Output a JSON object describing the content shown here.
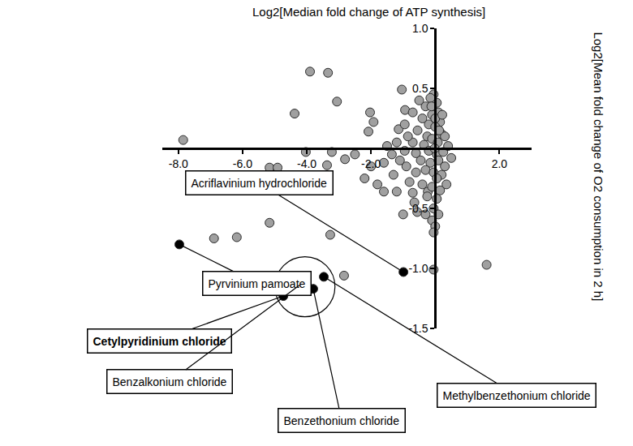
{
  "chart_data": {
    "type": "scatter",
    "x_title": "Log2[Median fold change of ATP synthesis]",
    "y_title": "Log2[Mean fold change of O2 consumption in 2 h]",
    "xlim": [
      -8.5,
      3.0
    ],
    "ylim": [
      -1.5,
      1.0
    ],
    "xticks": [
      {
        "value": -8,
        "label": "-8.0"
      },
      {
        "value": -6,
        "label": "-6.0"
      },
      {
        "value": -4,
        "label": "-4.0"
      },
      {
        "value": -2,
        "label": "-2.0"
      },
      {
        "value": 2,
        "label": "2.0"
      }
    ],
    "yticks": [
      {
        "value": 1,
        "label": "1.0"
      },
      0.5,
      -0.5,
      {
        "value": -1,
        "label": "-1.0"
      },
      {
        "value": -1.5,
        "label": "-1.5"
      }
    ],
    "grid": false,
    "series": [
      {
        "color": "#a0a0a0",
        "marker": "circle",
        "x": [
          -7.85,
          -3.9,
          -3.34,
          -3.06,
          -4.38,
          -2.03,
          -1.92,
          -2.08,
          -1.04,
          -0.94,
          -1.14,
          -4.03,
          -3.22,
          -2.5,
          -2.81,
          -5.16,
          -4.91,
          -3.37,
          -6.89,
          -6.18,
          -5.16,
          -3.27,
          -2.84,
          -0.23,
          -0.56,
          -2.0,
          -1.8,
          -1.6,
          -2.2,
          -1.2,
          -0.7,
          -0.05,
          0.05,
          -0.15,
          -0.3,
          0.1,
          -0.1,
          -0.4,
          0.15,
          -0.2,
          0.0,
          -0.55,
          0.2,
          -0.25,
          -0.1,
          0.08,
          -0.35,
          -0.7,
          -0.85,
          -1.2,
          -1.5,
          -1.35,
          -0.95,
          -0.6,
          -0.2,
          0.05,
          0.25,
          0.4,
          0.3,
          -0.45,
          -0.15,
          0.1,
          0.3,
          -0.3,
          -0.05,
          0.2,
          -0.6,
          -0.9,
          -1.1,
          -1.6,
          -1.3,
          -0.8,
          -0.4,
          -0.1,
          0.15,
          -0.25,
          0.05,
          -0.05,
          0.1,
          -0.1,
          0.0,
          -0.05,
          0.05,
          -0.02,
          0.12,
          -0.12,
          0.0,
          0.22,
          -0.5,
          -0.7,
          -0.95,
          1.6,
          -0.05,
          0.5,
          0.35,
          -0.65,
          -1.0,
          -0.3
        ],
        "y": [
          0.07,
          0.64,
          0.63,
          0.39,
          0.29,
          0.3,
          0.22,
          0.14,
          0.49,
          0.32,
          0.16,
          -0.03,
          -0.03,
          -0.05,
          -0.09,
          -0.16,
          -0.16,
          -0.14,
          -0.75,
          -0.74,
          -0.62,
          -0.72,
          -1.06,
          -0.36,
          -0.53,
          -0.15,
          -0.3,
          -0.36,
          -0.25,
          -0.36,
          -0.37,
          0.45,
          0.38,
          0.42,
          0.35,
          0.3,
          0.28,
          0.25,
          0.22,
          0.2,
          0.18,
          0.15,
          0.12,
          0.1,
          0.08,
          0.05,
          0.03,
          0.05,
          0.1,
          0.05,
          0.02,
          -0.05,
          -0.02,
          -0.04,
          -0.02,
          -0.05,
          -0.03,
          0.02,
          0.1,
          -0.1,
          -0.12,
          -0.1,
          -0.15,
          -0.18,
          -0.2,
          -0.22,
          -0.2,
          -0.15,
          -0.1,
          -0.12,
          -0.22,
          -0.28,
          -0.3,
          -0.32,
          -0.35,
          -0.4,
          -0.42,
          -0.5,
          -0.55,
          -0.6,
          -0.65,
          -0.7,
          -0.25,
          0.0,
          0.15,
          0.35,
          0.25,
          0.28,
          0.4,
          0.3,
          0.2,
          -0.97,
          -1.01,
          -0.08,
          -0.3,
          -0.45,
          -0.55,
          -0.55
        ]
      },
      {
        "color": "#000000",
        "marker": "circle",
        "x": [
          -7.97,
          -0.99,
          -4.73,
          -4.23,
          -3.8,
          -3.47
        ],
        "y": [
          -0.8,
          -1.03,
          -1.23,
          -1.14,
          -1.17,
          -1.07
        ],
        "labels": [
          "Pyrvinium pamoate",
          "Acriflavinium hydrochloride",
          "Cetylpyridinium chloride",
          "Benzalkonium chloride",
          "Benzethonium chloride",
          "Methylbenzethonium chloride"
        ]
      }
    ]
  }
}
